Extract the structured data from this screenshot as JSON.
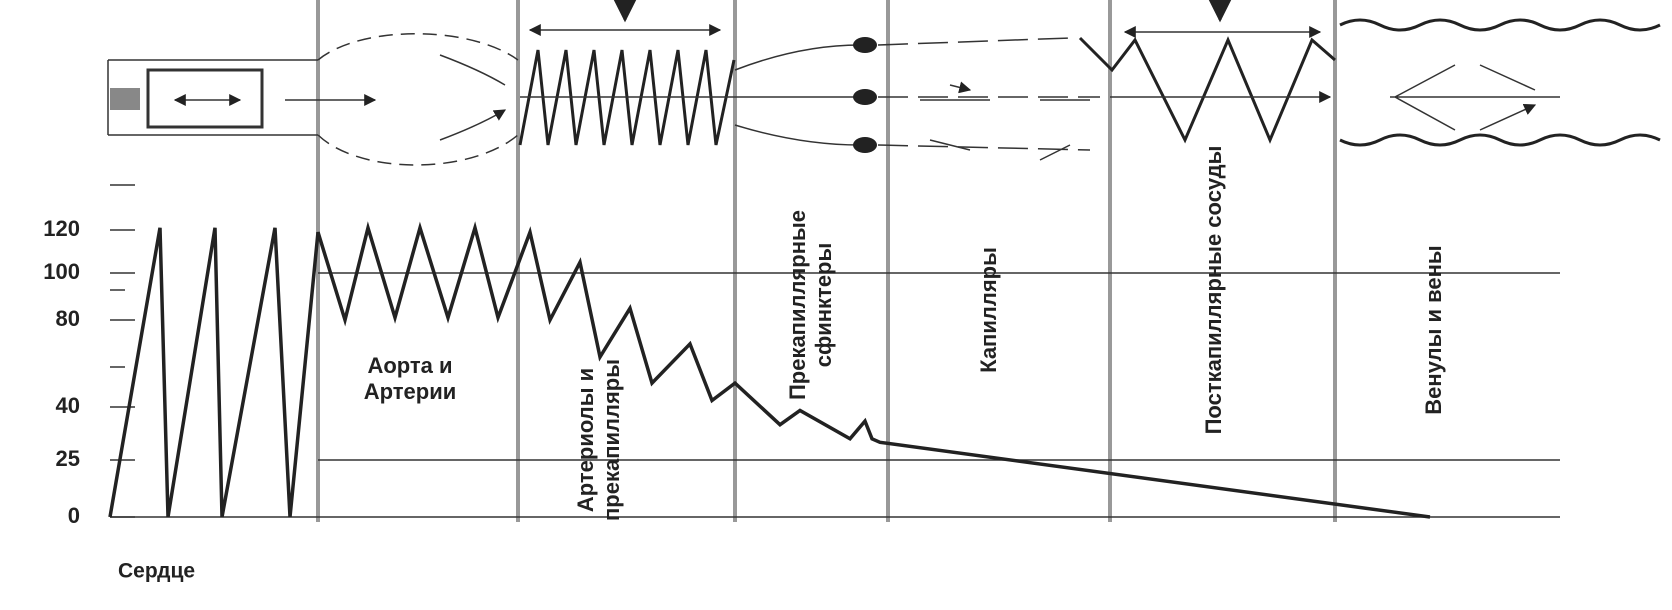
{
  "y_axis": {
    "ticks": [
      0,
      25,
      40,
      80,
      100,
      120
    ],
    "gridlines_at": [
      100,
      25
    ]
  },
  "heart_label": "Сердце",
  "sections": [
    {
      "label": [
        "Аорта и",
        "Артерии"
      ]
    },
    {
      "label": [
        "Артериолы и",
        "прекапилляры"
      ]
    },
    {
      "label": [
        "Прекапиллярные",
        "сфинктеры"
      ]
    },
    {
      "label": [
        "Капилляры"
      ]
    },
    {
      "label": [
        "Посткапиллярные сосуды"
      ]
    },
    {
      "label": [
        "Венулы и вены"
      ]
    }
  ],
  "pressure_curve": [
    0,
    121,
    0,
    121,
    0,
    121,
    0,
    119,
    80,
    121,
    81,
    121,
    81,
    121,
    81,
    119,
    80,
    105,
    63,
    85,
    51,
    69,
    43,
    51,
    35,
    39,
    31,
    36,
    31,
    30,
    0
  ]
}
